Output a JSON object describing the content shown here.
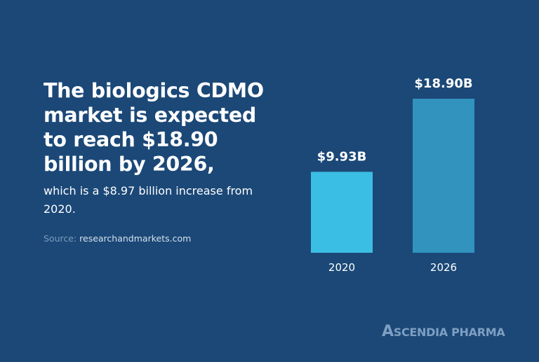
{
  "headline": "The biologics CDMO market is expected to reach $18.90 billion by 2026,",
  "subtext": "which is a $8.97 billion increase from 2020.",
  "source": {
    "label": "Source:",
    "value": "researchandmarkets.com"
  },
  "logo": "Ascendia Pharma",
  "chart_data": {
    "type": "bar",
    "categories": [
      "2020",
      "2026"
    ],
    "values": [
      9.93,
      18.9
    ],
    "data_labels": [
      "$9.93B",
      "$18.90B"
    ],
    "unit": "billion USD",
    "colors": [
      "#3bbee3",
      "#3193be"
    ],
    "ylim": [
      0,
      18.9
    ],
    "grid": false
  }
}
